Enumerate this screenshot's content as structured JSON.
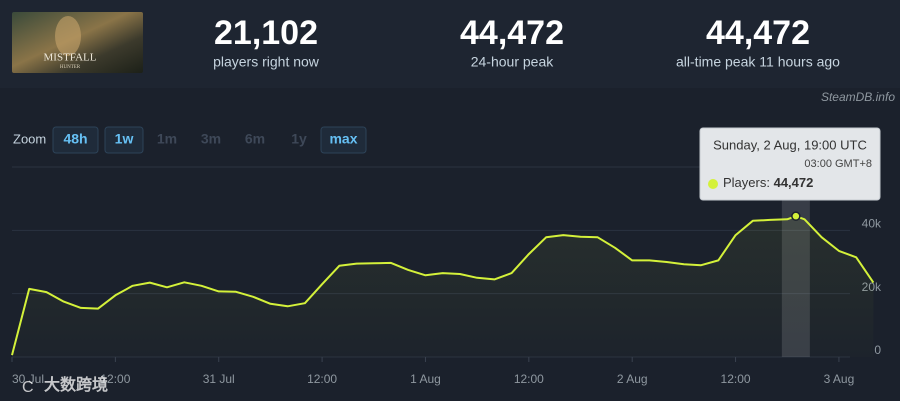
{
  "header": {
    "thumbnail": {
      "title": "MISTFALL",
      "subtitle": "HUNTER"
    },
    "stats": [
      {
        "value": "21,102",
        "label": "players right now"
      },
      {
        "value": "44,472",
        "label": "24-hour peak"
      },
      {
        "value": "44,472",
        "label": "all-time peak 11 hours ago"
      }
    ],
    "source": "SteamDB.info"
  },
  "zoom": {
    "label": "Zoom",
    "options": [
      {
        "text": "48h",
        "enabled": true
      },
      {
        "text": "1w",
        "enabled": true
      },
      {
        "text": "1m",
        "enabled": false
      },
      {
        "text": "3m",
        "enabled": false
      },
      {
        "text": "6m",
        "enabled": false
      },
      {
        "text": "1y",
        "enabled": false
      },
      {
        "text": "max",
        "enabled": true
      }
    ]
  },
  "tooltip": {
    "date": "Sunday, 2 Aug, 19:00 UTC",
    "local": "03:00 GMT+8",
    "series": "Players:",
    "value": "44,472"
  },
  "watermark": "大数跨境",
  "chart_data": {
    "type": "line",
    "color": "#d4f13a",
    "x": [
      "30 Jul 00:00",
      "30 Jul 02:00",
      "30 Jul 04:00",
      "30 Jul 06:00",
      "30 Jul 08:00",
      "30 Jul 10:00",
      "30 Jul 12:00",
      "30 Jul 14:00",
      "30 Jul 16:00",
      "30 Jul 18:00",
      "30 Jul 20:00",
      "30 Jul 22:00",
      "31 Jul 00:00",
      "31 Jul 02:00",
      "31 Jul 04:00",
      "31 Jul 06:00",
      "31 Jul 08:00",
      "31 Jul 10:00",
      "31 Jul 12:00",
      "31 Jul 14:00",
      "31 Jul 16:00",
      "31 Jul 18:00",
      "31 Jul 20:00",
      "31 Jul 22:00",
      "1 Aug 00:00",
      "1 Aug 02:00",
      "1 Aug 04:00",
      "1 Aug 06:00",
      "1 Aug 08:00",
      "1 Aug 10:00",
      "1 Aug 12:00",
      "1 Aug 14:00",
      "1 Aug 16:00",
      "1 Aug 18:00",
      "1 Aug 20:00",
      "1 Aug 22:00",
      "2 Aug 00:00",
      "2 Aug 02:00",
      "2 Aug 04:00",
      "2 Aug 06:00",
      "2 Aug 08:00",
      "2 Aug 10:00",
      "2 Aug 12:00",
      "2 Aug 14:00",
      "2 Aug 16:00",
      "2 Aug 18:00",
      "2 Aug 19:00",
      "2 Aug 20:00",
      "2 Aug 22:00",
      "3 Aug 00:00",
      "3 Aug 02:00",
      "3 Aug 04:00"
    ],
    "values": [
      600,
      21500,
      20500,
      17500,
      15500,
      15300,
      19500,
      22500,
      23500,
      22000,
      23600,
      22500,
      20700,
      20600,
      19000,
      16800,
      16000,
      17000,
      23000,
      28800,
      29500,
      29600,
      29700,
      27500,
      25800,
      26500,
      26200,
      25000,
      24500,
      26500,
      32500,
      37800,
      38500,
      38000,
      37800,
      34500,
      30500,
      30500,
      30000,
      29300,
      29000,
      30500,
      38500,
      43000,
      43300,
      43500,
      44472,
      43500,
      37800,
      33500,
      31500,
      23500
    ],
    "xlim": [
      "30 Jul 00:00",
      "3 Aug 05:00"
    ],
    "xticks": [
      {
        "value": "30 Jul 00:00",
        "label": "30 Jul"
      },
      {
        "value": "30 Jul 12:00",
        "label": "12:00"
      },
      {
        "value": "31 Jul 00:00",
        "label": "31 Jul"
      },
      {
        "value": "31 Jul 12:00",
        "label": "12:00"
      },
      {
        "value": "1 Aug 00:00",
        "label": "1 Aug"
      },
      {
        "value": "1 Aug 12:00",
        "label": "12:00"
      },
      {
        "value": "2 Aug 00:00",
        "label": "2 Aug"
      },
      {
        "value": "2 Aug 12:00",
        "label": "12:00"
      },
      {
        "value": "3 Aug 00:00",
        "label": "3 Aug"
      }
    ],
    "ylim": [
      0,
      60000
    ],
    "yticks": [
      0,
      {
        "value": 20000,
        "label": "20k"
      },
      {
        "value": 40000,
        "label": "40k"
      }
    ],
    "grid": true
  }
}
